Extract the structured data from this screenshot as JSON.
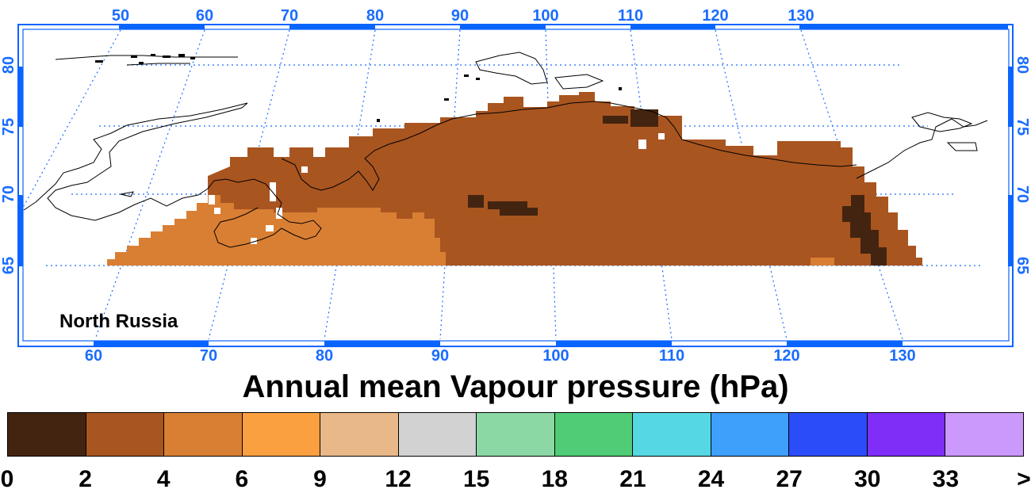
{
  "map": {
    "region_name": "North Russia",
    "top_lon_labels": [
      "50",
      "60",
      "70",
      "80",
      "90",
      "100",
      "110",
      "120",
      "130"
    ],
    "bottom_lon_labels": [
      "60",
      "70",
      "80",
      "90",
      "100",
      "110",
      "120",
      "130"
    ],
    "left_lat_labels": [
      "80",
      "75",
      "70",
      "65"
    ],
    "right_lat_labels": [
      "80",
      "75",
      "70",
      "65"
    ]
  },
  "title": "Annual mean Vapour pressure (hPa)",
  "legend": {
    "ticks": [
      "0",
      "2",
      "4",
      "6",
      "9",
      "12",
      "15",
      "18",
      "21",
      "24",
      "27",
      "30",
      "33",
      ">"
    ],
    "colors": [
      "#432410",
      "#a95520",
      "#d97f33",
      "#fba040",
      "#e9b888",
      "#d2d2d2",
      "#8cd8a5",
      "#4fcc75",
      "#55d8e4",
      "#3ea0fb",
      "#2b4df9",
      "#7f2ef8",
      "#cb98fb"
    ]
  },
  "colors": {
    "axis_blue": "#1a6cff",
    "frame_blue": "#0a64ff"
  }
}
